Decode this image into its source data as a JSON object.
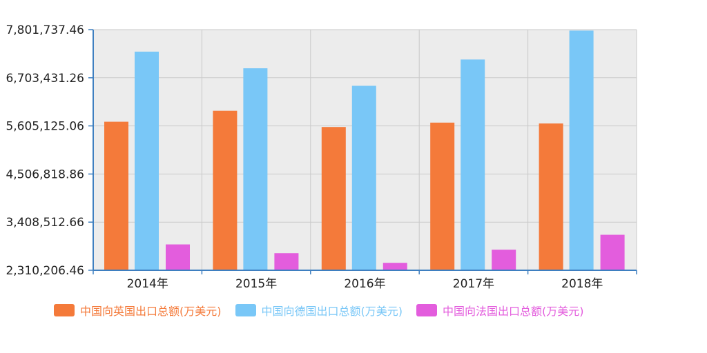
{
  "chart_data": {
    "type": "bar",
    "categories": [
      "2014年",
      "2015年",
      "2016年",
      "2017年",
      "2018年"
    ],
    "y_ticks": [
      "2,310,206.46",
      "3,408,512.66",
      "4,506,818.86",
      "5,605,125.06",
      "6,703,431.26",
      "7,801,737.46"
    ],
    "ylim": [
      2310206.46,
      7801737.46
    ],
    "grid": true,
    "legend_position": "bottom",
    "series": [
      {
        "name": "中国向英国出口总额(万美元)",
        "color": "#f47a3a",
        "values": [
          5700000,
          5950000,
          5580000,
          5680000,
          5660000
        ]
      },
      {
        "name": "中国向德国出口总额(万美元)",
        "color": "#79c7f7",
        "values": [
          7300000,
          6920000,
          6520000,
          7120000,
          7780000
        ]
      },
      {
        "name": "中国向法国出口总额(万美元)",
        "color": "#e35ddd",
        "values": [
          2900000,
          2700000,
          2480000,
          2780000,
          3120000
        ]
      }
    ]
  }
}
